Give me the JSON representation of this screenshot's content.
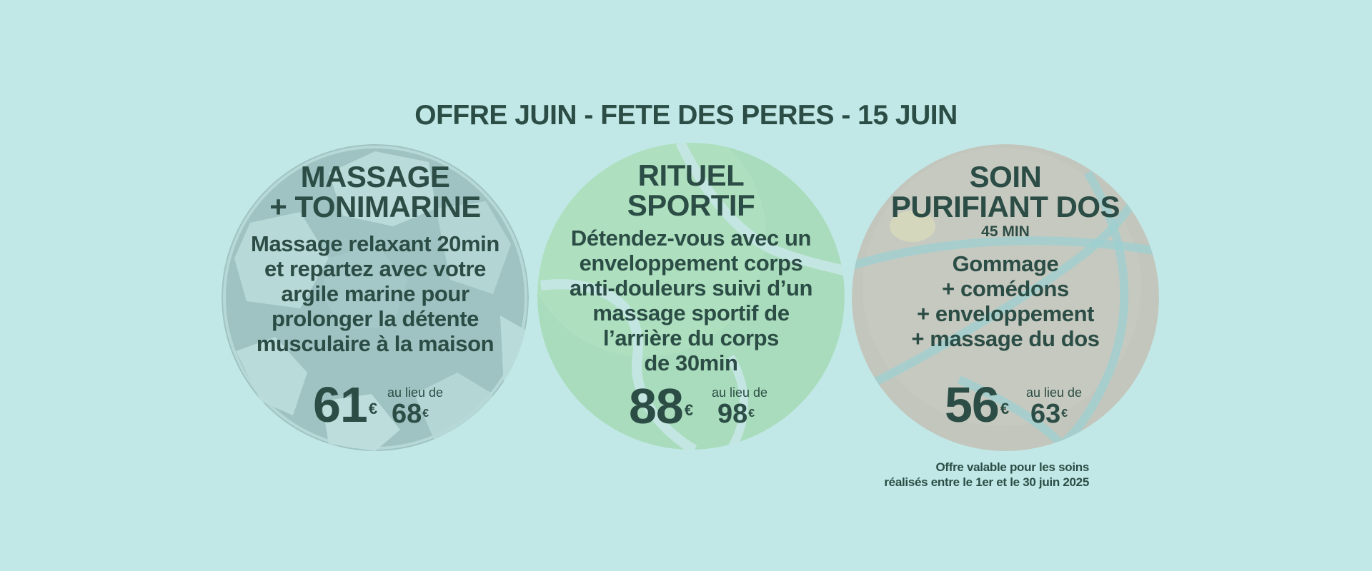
{
  "page": {
    "title": "OFFRE JUIN - FETE DES PERES - 15 JUIN",
    "background": "#c1e8e7",
    "text_color": "#2b4d45"
  },
  "offers": [
    {
      "title_line1": "MASSAGE",
      "title_line2": "+ TONIMARINE",
      "description": [
        "Massage relaxant 20min",
        "et repartez avec votre",
        "argile marine pour",
        "prolonger la détente",
        "musculaire à la maison"
      ],
      "price": "61",
      "currency": "€",
      "instead_label": "au lieu de",
      "old_price": "68",
      "ball_icon": "soccer-ball-icon",
      "ball_color": "#9fc4c3"
    },
    {
      "title_line1": "RITUEL",
      "title_line2": "SPORTIF",
      "description": [
        "Détendez-vous avec un",
        "enveloppement corps",
        "anti-douleurs suivi d’un",
        "massage sportif de",
        "l’arrière du corps",
        "de 30min"
      ],
      "price": "88",
      "currency": "€",
      "instead_label": "au lieu de",
      "old_price": "98",
      "ball_icon": "tennis-ball-icon",
      "ball_color": "#a9dcbd"
    },
    {
      "title_line1": "SOIN",
      "title_line2": "PURIFIANT DOS",
      "subtitle": "45 MIN",
      "description": [
        "Gommage",
        "+ comédons",
        "+ enveloppement",
        "+ massage du dos"
      ],
      "price": "56",
      "currency": "€",
      "instead_label": "au lieu de",
      "old_price": "63",
      "ball_icon": "basketball-icon",
      "ball_color": "#c3c6bd"
    }
  ],
  "footnote": {
    "line1": "Offre valable pour les soins",
    "line2": "réalisés entre le 1er et le 30 juin 2025"
  }
}
